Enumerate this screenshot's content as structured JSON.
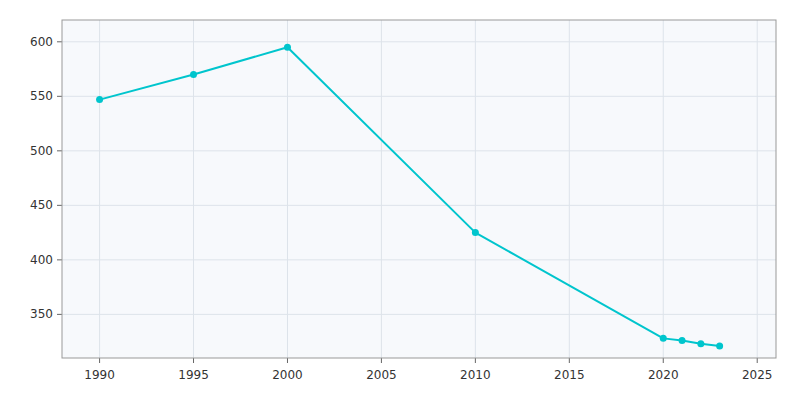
{
  "chart_data": {
    "type": "line",
    "x": [
      1990,
      1995,
      2000,
      2010,
      2020,
      2021,
      2022,
      2023
    ],
    "values": [
      547,
      570,
      595,
      425,
      328,
      326,
      323,
      321
    ],
    "color": "#00C5CD",
    "marker": "circle",
    "xlim": [
      1988,
      2026
    ],
    "ylim": [
      310,
      620
    ],
    "xticks": [
      1990,
      1995,
      2000,
      2005,
      2010,
      2015,
      2020,
      2025
    ],
    "yticks": [
      350,
      400,
      450,
      500,
      550,
      600
    ],
    "grid": true
  }
}
